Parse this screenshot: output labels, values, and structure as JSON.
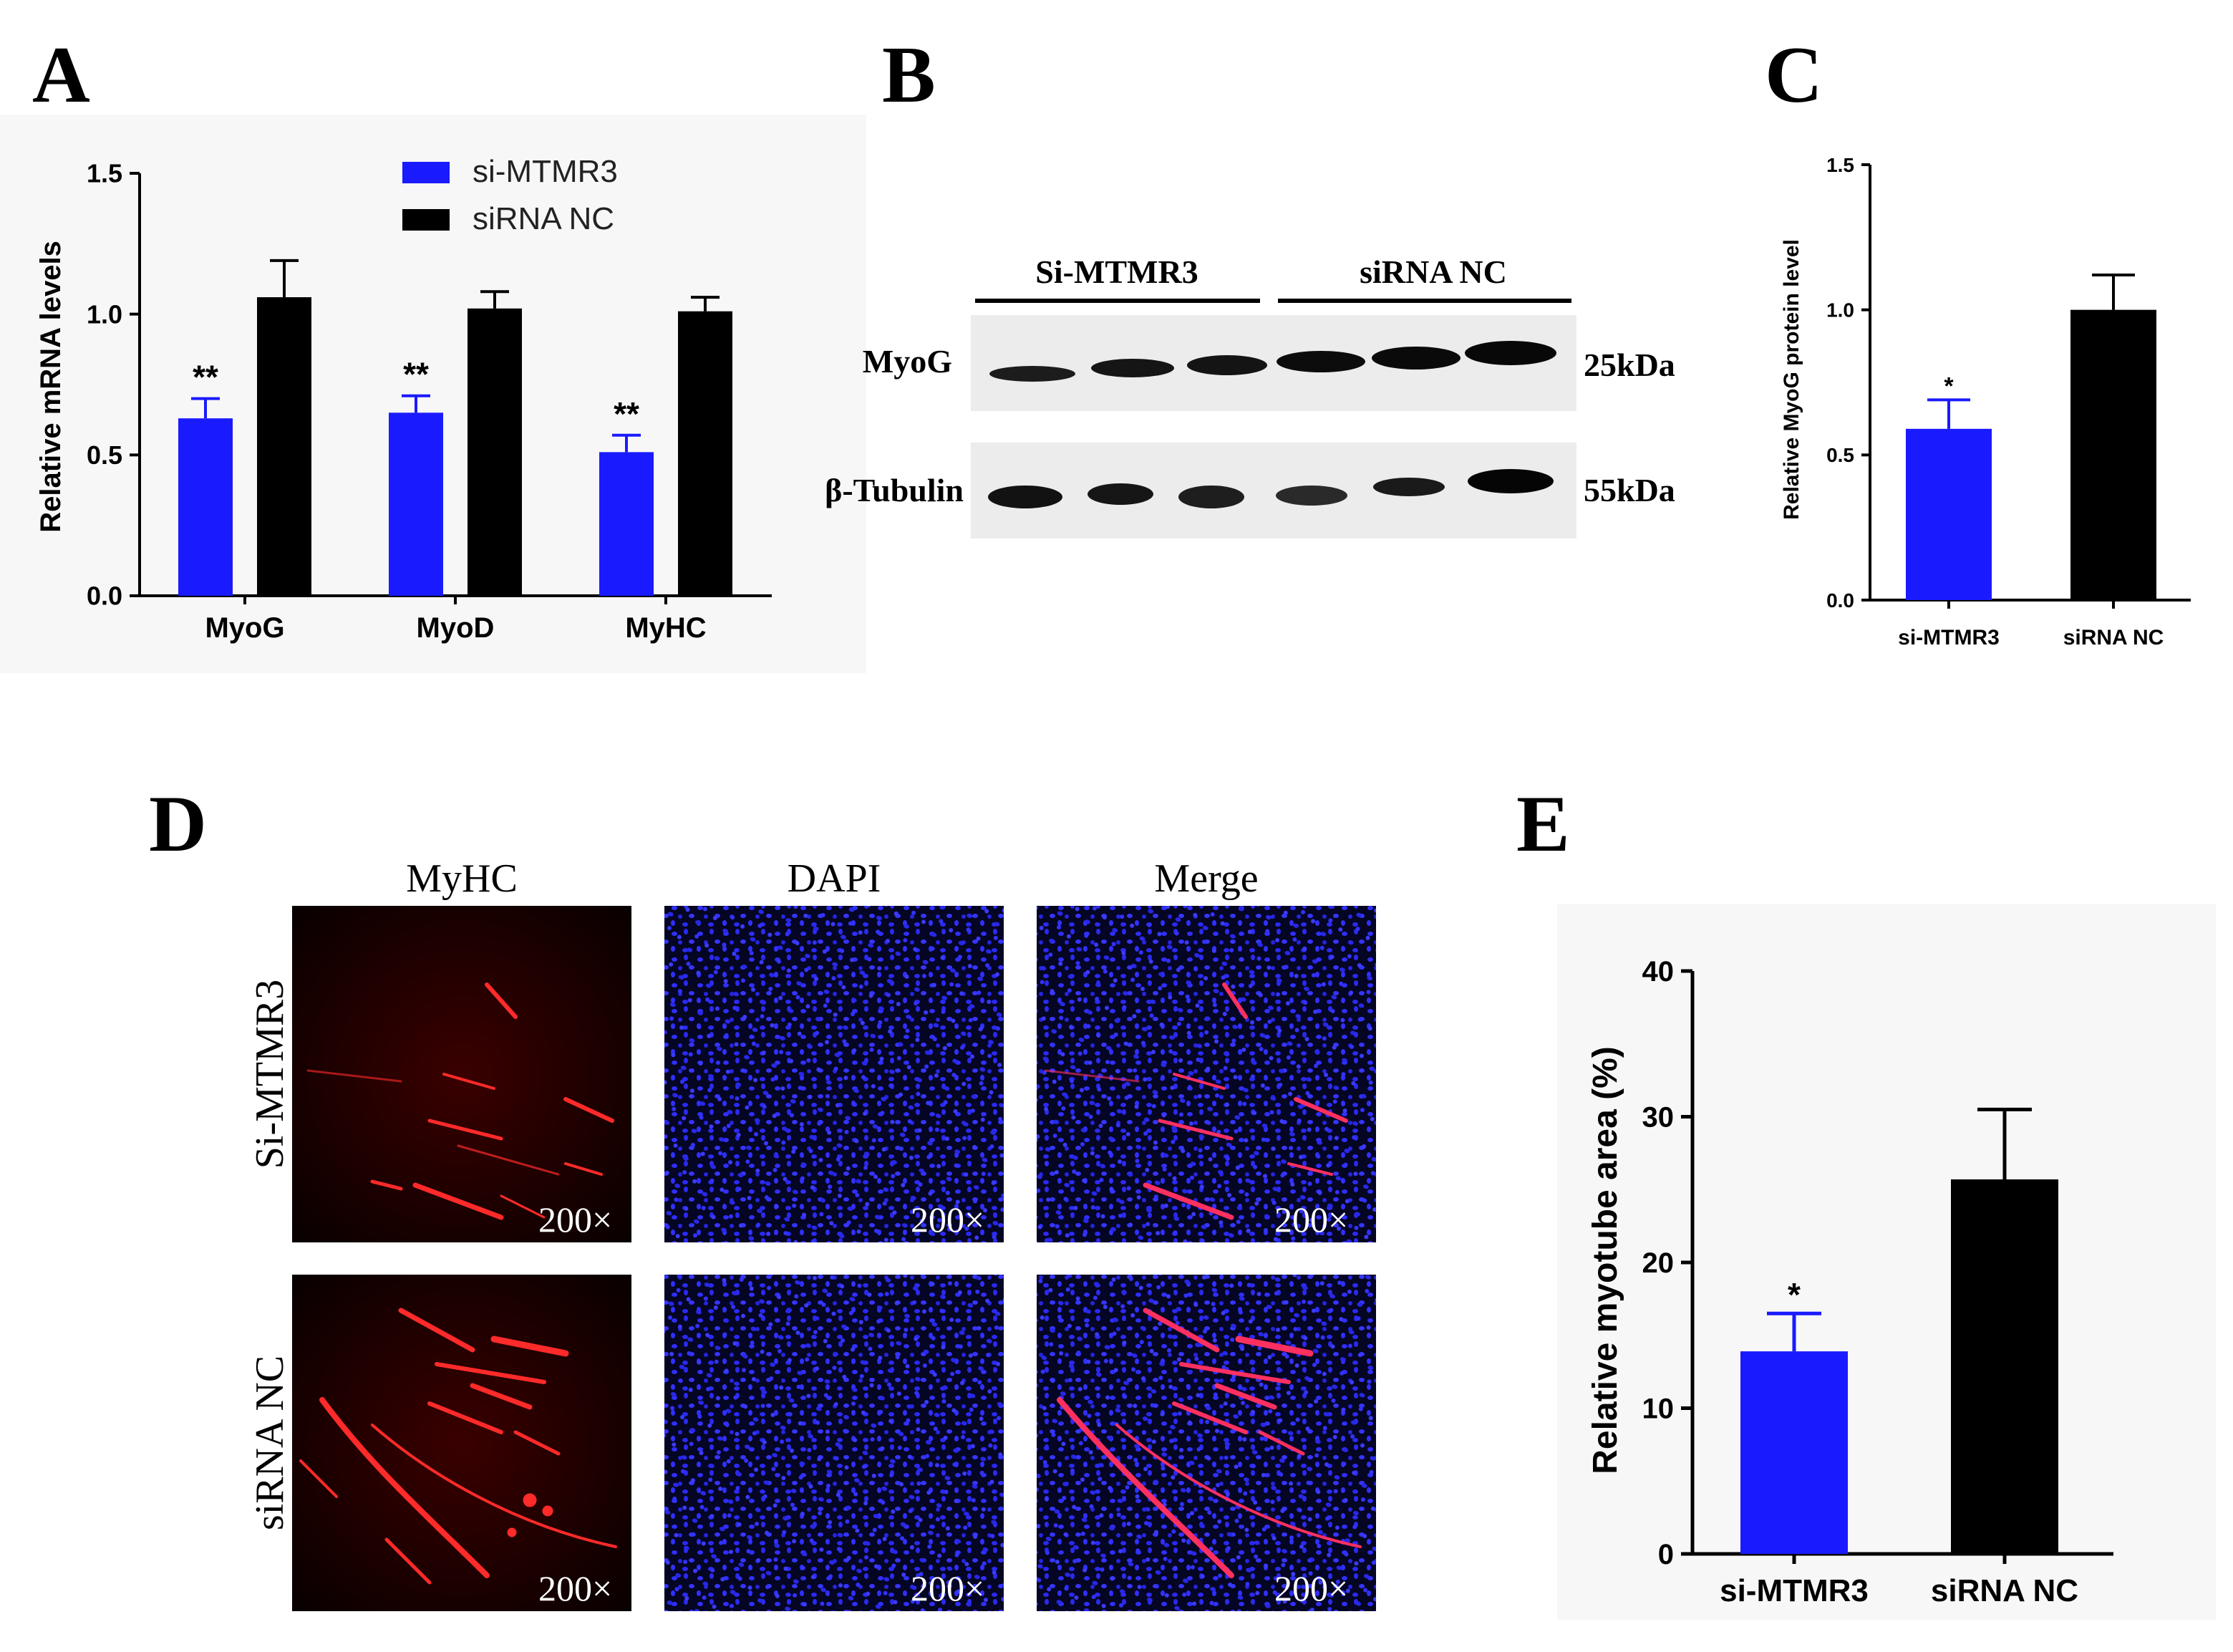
{
  "panels": {
    "a": {
      "letter": "A"
    },
    "b": {
      "letter": "B"
    },
    "c": {
      "letter": "C"
    },
    "d": {
      "letter": "D"
    },
    "e": {
      "letter": "E"
    }
  },
  "colors": {
    "si": "#1a1aff",
    "nc": "#000000",
    "red_stain": "#ff2020",
    "blue_stain": "#2a2aff"
  },
  "chart_data": [
    {
      "panel": "A",
      "type": "bar",
      "ylabel": "Relative mRNA levels",
      "ylim": [
        0,
        1.5
      ],
      "yticks": [
        "0.0",
        "0.5",
        "1.0",
        "1.5"
      ],
      "categories": [
        "MyoG",
        "MyoD",
        "MyHC"
      ],
      "legend_position": "top",
      "series": [
        {
          "name": "si-MTMR3",
          "color": "#1a1aff",
          "values": [
            0.63,
            0.65,
            0.51
          ],
          "errors": [
            0.07,
            0.06,
            0.06
          ],
          "annotations": [
            "**",
            "**",
            "**"
          ]
        },
        {
          "name": "siRNA NC",
          "color": "#000000",
          "values": [
            1.06,
            1.02,
            1.01
          ],
          "errors": [
            0.13,
            0.06,
            0.05
          ],
          "annotations": [
            "",
            "",
            ""
          ]
        }
      ]
    },
    {
      "panel": "C",
      "type": "bar",
      "ylabel": "Relative MyoG protein level",
      "ylim": [
        0,
        1.5
      ],
      "yticks": [
        "0.0",
        "0.5",
        "1.0",
        "1.5"
      ],
      "categories": [
        "si-MTMR3",
        "siRNA NC"
      ],
      "values": [
        0.59,
        1.0
      ],
      "errors": [
        0.1,
        0.12
      ],
      "colors": [
        "#1a1aff",
        "#000000"
      ],
      "annotations": [
        "*",
        ""
      ]
    },
    {
      "panel": "E",
      "type": "bar",
      "ylabel": "Relative myotube area (%)",
      "ylim": [
        0,
        40
      ],
      "yticks": [
        "0",
        "10",
        "20",
        "30",
        "40"
      ],
      "categories": [
        "si-MTMR3",
        "siRNA NC"
      ],
      "values": [
        13.9,
        25.7
      ],
      "errors": [
        2.6,
        4.8
      ],
      "colors": [
        "#1a1aff",
        "#000000"
      ],
      "annotations": [
        "*",
        ""
      ]
    }
  ],
  "western_blot": {
    "groups": [
      "Si-MTMR3",
      "siRNA NC"
    ],
    "rows": [
      {
        "label": "MyoG",
        "size": "25kDa"
      },
      {
        "label": "β-Tubulin",
        "size": "55kDa"
      }
    ]
  },
  "microscopy": {
    "columns": [
      "MyHC",
      "DAPI",
      "Merge"
    ],
    "rows": [
      "Si-MTMR3",
      "siRNA NC"
    ],
    "magnification": "200×"
  }
}
